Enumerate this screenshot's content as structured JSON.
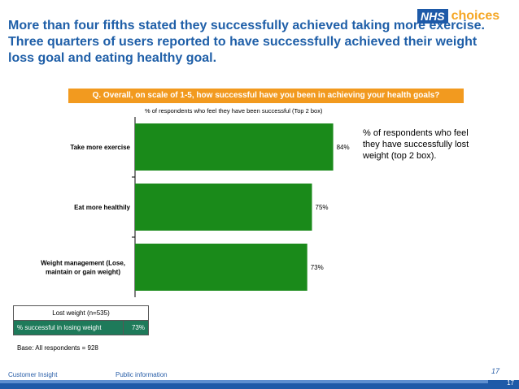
{
  "headline": "More than four fifths stated they successfully achieved taking more exercise. Three quarters of users reported to have successfully achieved their weight loss goal and eating healthy goal.",
  "logo": {
    "nhs": "NHS",
    "choices": "choices"
  },
  "question": "Q. Overall, on  scale of 1-5,  how successful have you been in achieving your health goals?",
  "chart_note": "% of respondents who feel they have successfully lost weight (top 2 box).",
  "chart_data": {
    "type": "bar",
    "orientation": "horizontal",
    "title": "% of respondents who feel they have been successful (Top 2 box)",
    "categories": [
      "Take more exercise",
      "Eat more healthily",
      "Weight management (Lose, maintain or gain weight)"
    ],
    "values": [
      84,
      75,
      73
    ],
    "value_labels": [
      "84%",
      "75%",
      "73%"
    ],
    "xlim": [
      0,
      100
    ],
    "bar_color": "#1a8a1a",
    "grid": false,
    "legend": "none"
  },
  "lost_weight_table": {
    "header": "Lost weight (n=535)",
    "row_label": "% successful in losing weight",
    "row_value": "73%"
  },
  "base": "Base: All respondents = 928",
  "footer": {
    "left": "Customer Insight",
    "middle": "Public information",
    "page": "17",
    "page_corner": "17"
  },
  "colors": {
    "headline": "#1f5fa8",
    "banner": "#f29a1f",
    "bar": "#1a8a1a",
    "footer": "#1e5aa8",
    "table_row": "#1e7a5a"
  }
}
